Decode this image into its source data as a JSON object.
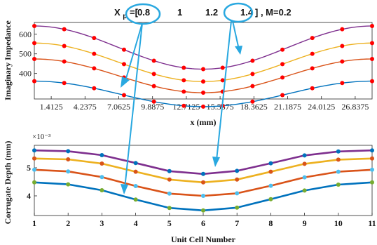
{
  "header": {
    "text_prefix": "X",
    "text_sub": "p",
    "text_bracket": " =[",
    "values": [
      "0.8",
      "1",
      "1.2",
      "1.4"
    ],
    "text_suffix": "] , M=0.2"
  },
  "chart_data": [
    {
      "type": "line",
      "xlabel": "x (mm)",
      "ylabel": "Imaginary Impedance",
      "xlim": [
        0,
        28.25
      ],
      "ylim": [
        270,
        660
      ],
      "yticks": [
        400,
        500,
        600
      ],
      "xticks": [
        1.4125,
        4.2375,
        7.0625,
        9.8875,
        12.7125,
        15.5375,
        18.3625,
        21.1875,
        24.0125,
        26.8375
      ],
      "xtick_labels": [
        "1.4125",
        "4.2375",
        "7.0625",
        "9.8875",
        "12.7125",
        "15.5375",
        "18.3625",
        "21.1875",
        "24.0125",
        "26.8375"
      ],
      "marker_x": [
        0,
        2.5,
        5,
        7.5,
        10,
        12.5,
        14.125,
        15.75,
        18.25,
        20.75,
        23.25,
        25.75,
        28.25
      ],
      "series": [
        {
          "color": "#7e2f8e",
          "mean": 532,
          "amp": 110
        },
        {
          "color": "#edb120",
          "mean": 457,
          "amp": 98
        },
        {
          "color": "#d95319",
          "mean": 388,
          "amp": 86
        },
        {
          "color": "#0072bd",
          "mean": 296,
          "amp": 65
        }
      ],
      "marker_color": "#ff0000"
    },
    {
      "type": "line",
      "xlabel": "Unit Cell Number",
      "ylabel": "Corrugate Depth (mm)",
      "exponent": "×10⁻³",
      "xlim": [
        1,
        11
      ],
      "ylim": [
        3.3,
        5.8
      ],
      "yticks": [
        4,
        5
      ],
      "categories": [
        "1",
        "2",
        "3",
        "4",
        "5",
        "6",
        "7",
        "8",
        "9",
        "10",
        "11"
      ],
      "series": [
        {
          "color": "#7e2f8e",
          "marker": "#0072bd",
          "values": [
            5.62,
            5.59,
            5.45,
            5.17,
            4.88,
            4.78,
            4.89,
            5.16,
            5.44,
            5.58,
            5.62
          ]
        },
        {
          "color": "#edb120",
          "marker": "#d95319",
          "values": [
            5.33,
            5.3,
            5.15,
            4.86,
            4.58,
            4.48,
            4.58,
            4.86,
            5.14,
            5.29,
            5.33
          ]
        },
        {
          "color": "#d95319",
          "marker": "#4dbeee",
          "values": [
            4.93,
            4.87,
            4.67,
            4.35,
            4.08,
            4.0,
            4.09,
            4.36,
            4.66,
            4.86,
            4.93
          ]
        },
        {
          "color": "#0072bd",
          "marker": "#77ac30",
          "values": [
            4.48,
            4.41,
            4.2,
            3.87,
            3.57,
            3.48,
            3.58,
            3.88,
            4.19,
            4.4,
            4.48
          ]
        }
      ]
    }
  ]
}
